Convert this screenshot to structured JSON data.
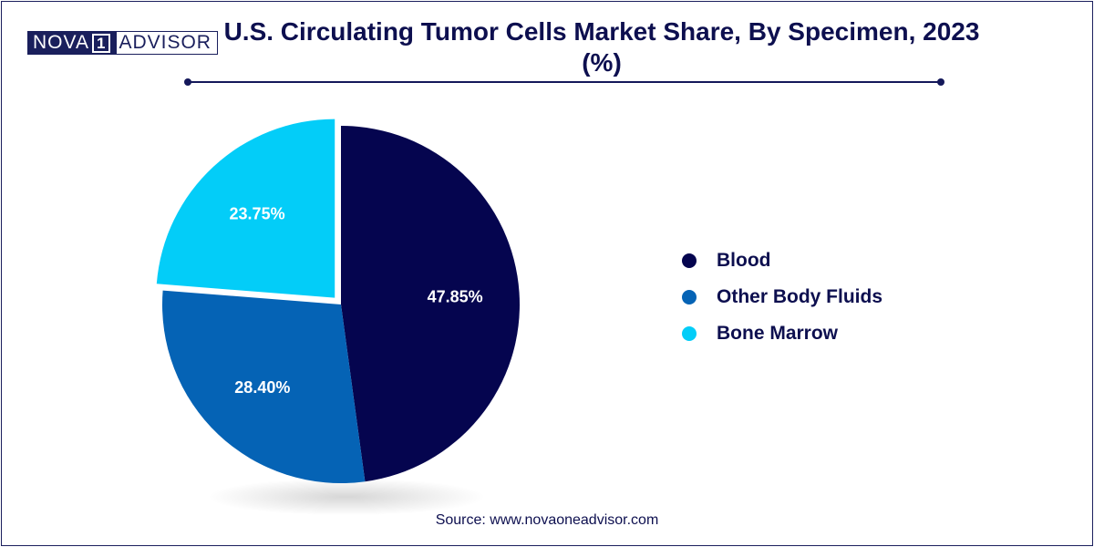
{
  "brand": {
    "logo_left": "NOVA",
    "logo_mark": "1",
    "logo_right": "ADVISOR"
  },
  "chart_data": {
    "type": "pie",
    "title": "U.S. Circulating Tumor Cells Market Share, By Specimen, 2023 (%)",
    "slices": [
      {
        "label": "Blood",
        "value": 47.85,
        "value_label": "47.85%",
        "color": "#05054f"
      },
      {
        "label": "Other Body Fluids",
        "value": 28.4,
        "value_label": "28.40%",
        "color": "#0563b5"
      },
      {
        "label": "Bone Marrow",
        "value": 23.75,
        "value_label": "23.75%",
        "color": "#03cdf8",
        "exploded": true
      }
    ],
    "start_angle": "12 o'clock, clockwise",
    "legend_position": "right"
  },
  "source": "Source: www.novaoneadvisor.com"
}
